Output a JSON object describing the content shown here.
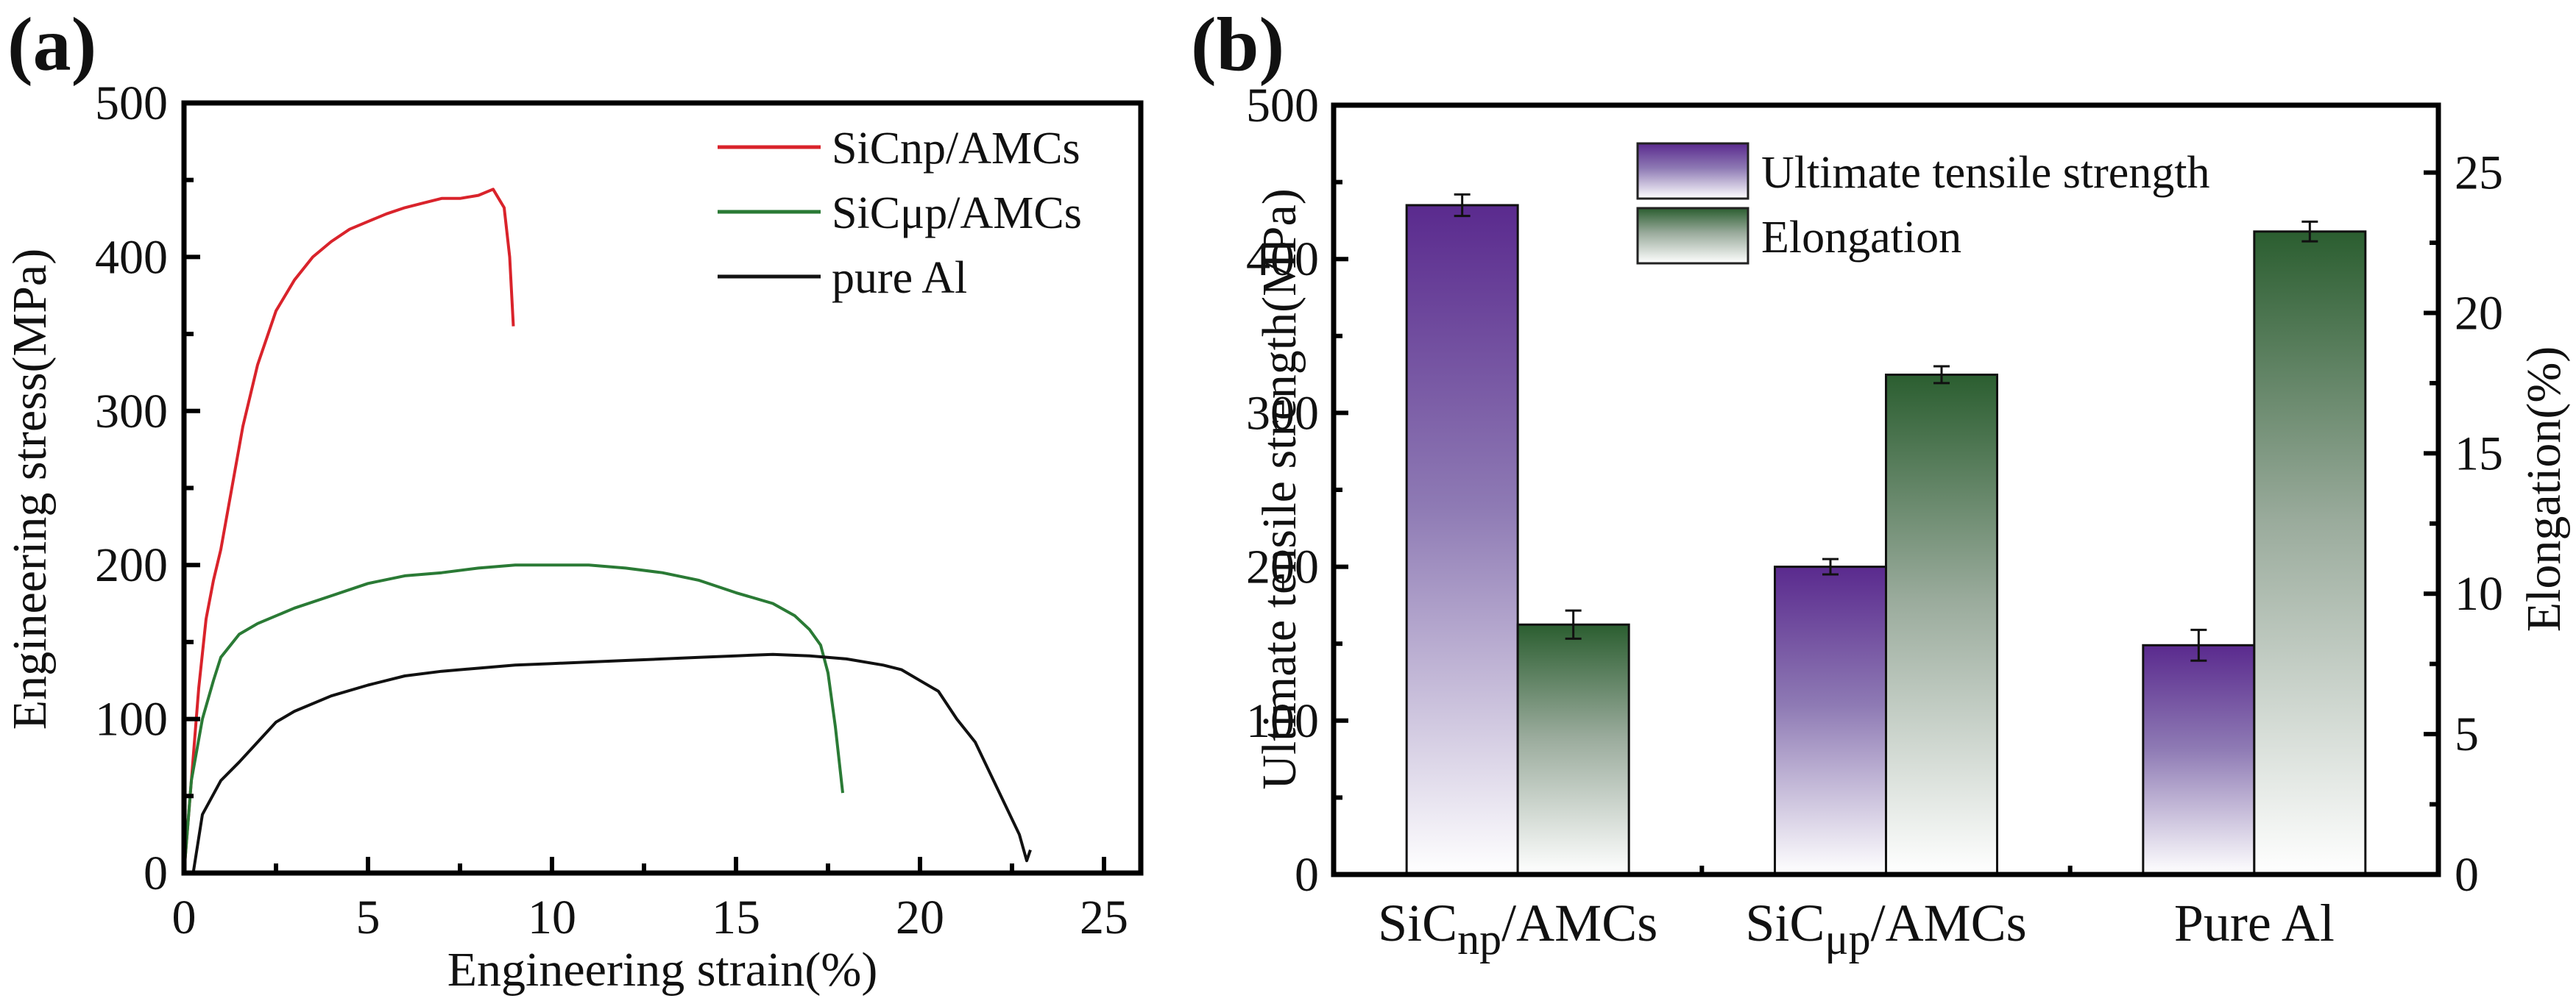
{
  "figure": {
    "panels": [
      "(a)",
      "(b)"
    ]
  },
  "chart_data": [
    {
      "type": "line",
      "panel_label": "(a)",
      "title": "",
      "xlabel": "Engineering strain(%)",
      "ylabel": "Engineering stress(MPa)",
      "xlim": [
        0,
        26
      ],
      "ylim": [
        0,
        500
      ],
      "xticks": [
        0,
        5,
        10,
        15,
        20,
        25
      ],
      "yticks": [
        0,
        100,
        200,
        300,
        400,
        500
      ],
      "grid": false,
      "legend_position": "top-right",
      "series": [
        {
          "name": "SiCnp/AMCs",
          "color": "#d9232b",
          "x": [
            0,
            0.2,
            0.4,
            0.6,
            0.8,
            1.0,
            1.3,
            1.6,
            2.0,
            2.5,
            3.0,
            3.5,
            4.0,
            4.5,
            5.0,
            5.5,
            6.0,
            6.5,
            7.0,
            7.5,
            8.0,
            8.4,
            8.7,
            8.85,
            8.95
          ],
          "y": [
            0,
            60,
            120,
            165,
            190,
            210,
            250,
            290,
            330,
            365,
            385,
            400,
            410,
            418,
            423,
            428,
            432,
            435,
            438,
            438,
            440,
            444,
            432,
            400,
            355
          ]
        },
        {
          "name": "SiCμp/AMCs",
          "color": "#2a7a35",
          "x": [
            0,
            0.2,
            0.5,
            0.8,
            1.0,
            1.5,
            2.0,
            3.0,
            4.0,
            5.0,
            6.0,
            7.0,
            8.0,
            9.0,
            10.0,
            11.0,
            12.0,
            13.0,
            14.0,
            15.0,
            16.0,
            16.6,
            17.0,
            17.3,
            17.5,
            17.7,
            17.9
          ],
          "y": [
            0,
            60,
            100,
            125,
            140,
            155,
            162,
            172,
            180,
            188,
            193,
            195,
            198,
            200,
            200,
            200,
            198,
            195,
            190,
            182,
            175,
            167,
            158,
            148,
            130,
            95,
            52
          ]
        },
        {
          "name": "pure Al",
          "color": "#111111",
          "x": [
            0.25,
            0.5,
            1.0,
            1.5,
            2.0,
            2.5,
            3.0,
            4.0,
            5.0,
            6.0,
            7.0,
            8.0,
            9.0,
            10.0,
            11.0,
            12.0,
            13.0,
            14.0,
            15.0,
            16.0,
            17.0,
            18.0,
            19.0,
            19.5,
            20.0,
            20.5,
            21.0,
            21.5,
            22.0,
            22.4,
            22.7,
            22.9,
            23.0
          ],
          "y": [
            0,
            38,
            60,
            72,
            85,
            98,
            105,
            115,
            122,
            128,
            131,
            133,
            135,
            136,
            137,
            138,
            139,
            140,
            141,
            142,
            141,
            139,
            135,
            132,
            125,
            118,
            100,
            85,
            60,
            40,
            25,
            8,
            15
          ]
        }
      ]
    },
    {
      "type": "bar",
      "panel_label": "(b)",
      "title": "",
      "categories": [
        "SiCnp/AMCs",
        "SiCμp/AMCs",
        "Pure Al"
      ],
      "category_parts": [
        {
          "main": "SiC",
          "sub": "np",
          "rest": "/AMCs"
        },
        {
          "main": "SiC",
          "sub": "μp",
          "rest": "/AMCs"
        },
        {
          "main": "Pure Al",
          "sub": "",
          "rest": ""
        }
      ],
      "xlabel": "",
      "ylabel": "Ultimate tensile strength(MPa)",
      "ylabel_right": "Elongation(%)",
      "ylim": [
        0,
        500
      ],
      "ylim_right": [
        0,
        27.4
      ],
      "yticks": [
        0,
        100,
        200,
        300,
        400,
        500
      ],
      "yticks_right": [
        0,
        5,
        10,
        15,
        20,
        25
      ],
      "grid": false,
      "legend_position": "top-center",
      "series": [
        {
          "name": "Ultimate tensile strength",
          "axis": "left",
          "color_top": "#5a2a8e",
          "color_bottom": "#ffffff",
          "values": [
            435,
            200,
            149
          ],
          "errors": [
            7,
            5,
            10
          ]
        },
        {
          "name": "Elongation",
          "axis": "right",
          "color_top": "#2b5e30",
          "color_bottom": "#ffffff",
          "values": [
            8.9,
            17.8,
            22.9
          ],
          "errors": [
            0.5,
            0.3,
            0.35
          ]
        }
      ]
    }
  ]
}
